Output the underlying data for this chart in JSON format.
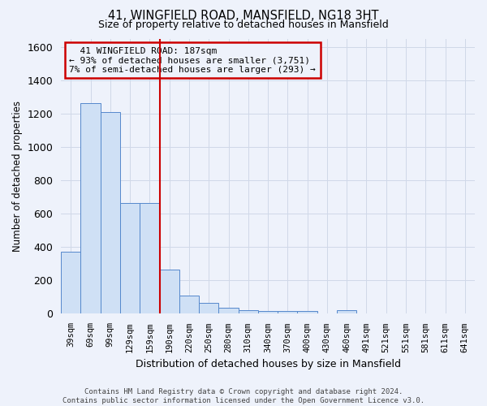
{
  "title1": "41, WINGFIELD ROAD, MANSFIELD, NG18 3HT",
  "title2": "Size of property relative to detached houses in Mansfield",
  "xlabel": "Distribution of detached houses by size in Mansfield",
  "ylabel": "Number of detached properties",
  "footnote": "Contains HM Land Registry data © Crown copyright and database right 2024.\nContains public sector information licensed under the Open Government Licence v3.0.",
  "categories": [
    "39sqm",
    "69sqm",
    "99sqm",
    "129sqm",
    "159sqm",
    "190sqm",
    "220sqm",
    "250sqm",
    "280sqm",
    "310sqm",
    "340sqm",
    "370sqm",
    "400sqm",
    "430sqm",
    "460sqm",
    "491sqm",
    "521sqm",
    "551sqm",
    "581sqm",
    "611sqm",
    "641sqm"
  ],
  "values": [
    370,
    1265,
    1210,
    665,
    665,
    265,
    110,
    65,
    37,
    22,
    15,
    15,
    15,
    0,
    20,
    0,
    0,
    0,
    0,
    0,
    0
  ],
  "bar_color": "#cfe0f5",
  "bar_edge_color": "#5588cc",
  "grid_color": "#d0d8e8",
  "annotation_box_color": "#cc0000",
  "annotation_text": "  41 WINGFIELD ROAD: 187sqm\n← 93% of detached houses are smaller (3,751)\n7% of semi-detached houses are larger (293) →",
  "ylim": [
    0,
    1650
  ],
  "yticks": [
    0,
    200,
    400,
    600,
    800,
    1000,
    1200,
    1400,
    1600
  ],
  "background_color": "#eef2fb",
  "footnote_color": "#444444"
}
